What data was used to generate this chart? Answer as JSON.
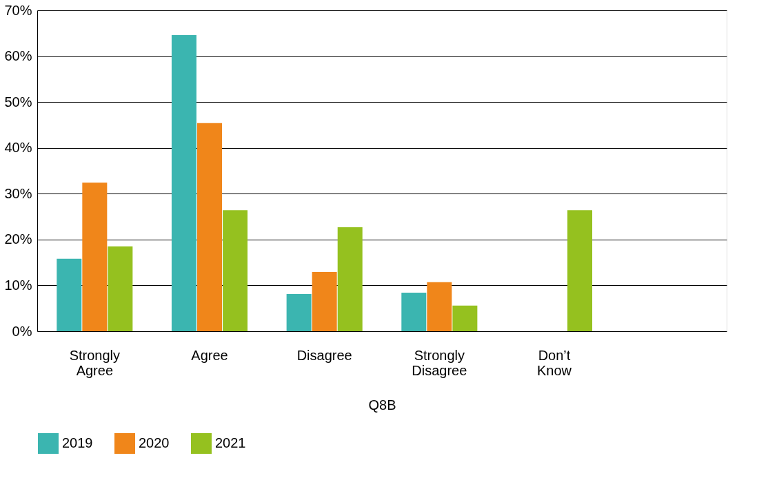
{
  "chart_data": {
    "type": "bar",
    "xlabel": "Q8B",
    "categories": [
      "Strongly Agree",
      "Agree",
      "Disagree",
      "Strongly Disagree",
      "Don’t Know",
      null
    ],
    "series": [
      {
        "name": "2019",
        "color": "#3bb5b0",
        "values": [
          15.8,
          64.6,
          8.1,
          8.4,
          null,
          null
        ]
      },
      {
        "name": "2020",
        "color": "#f0861a",
        "values": [
          32.4,
          45.4,
          12.9,
          10.7,
          null,
          null
        ]
      },
      {
        "name": "2021",
        "color": "#95c11f",
        "values": [
          18.5,
          26.4,
          22.7,
          5.6,
          26.4,
          null
        ]
      }
    ],
    "ylim": [
      0,
      70
    ],
    "yticks": [
      {
        "value": 0,
        "label": "0%"
      },
      {
        "value": 10,
        "label": "10%"
      },
      {
        "value": 20,
        "label": "20%"
      },
      {
        "value": 30,
        "label": "30%"
      },
      {
        "value": 40,
        "label": "40%"
      },
      {
        "value": 50,
        "label": "50%"
      },
      {
        "value": 60,
        "label": "60%"
      },
      {
        "value": 70,
        "label": "70%"
      }
    ],
    "grid": "y",
    "legend": "bottom"
  }
}
